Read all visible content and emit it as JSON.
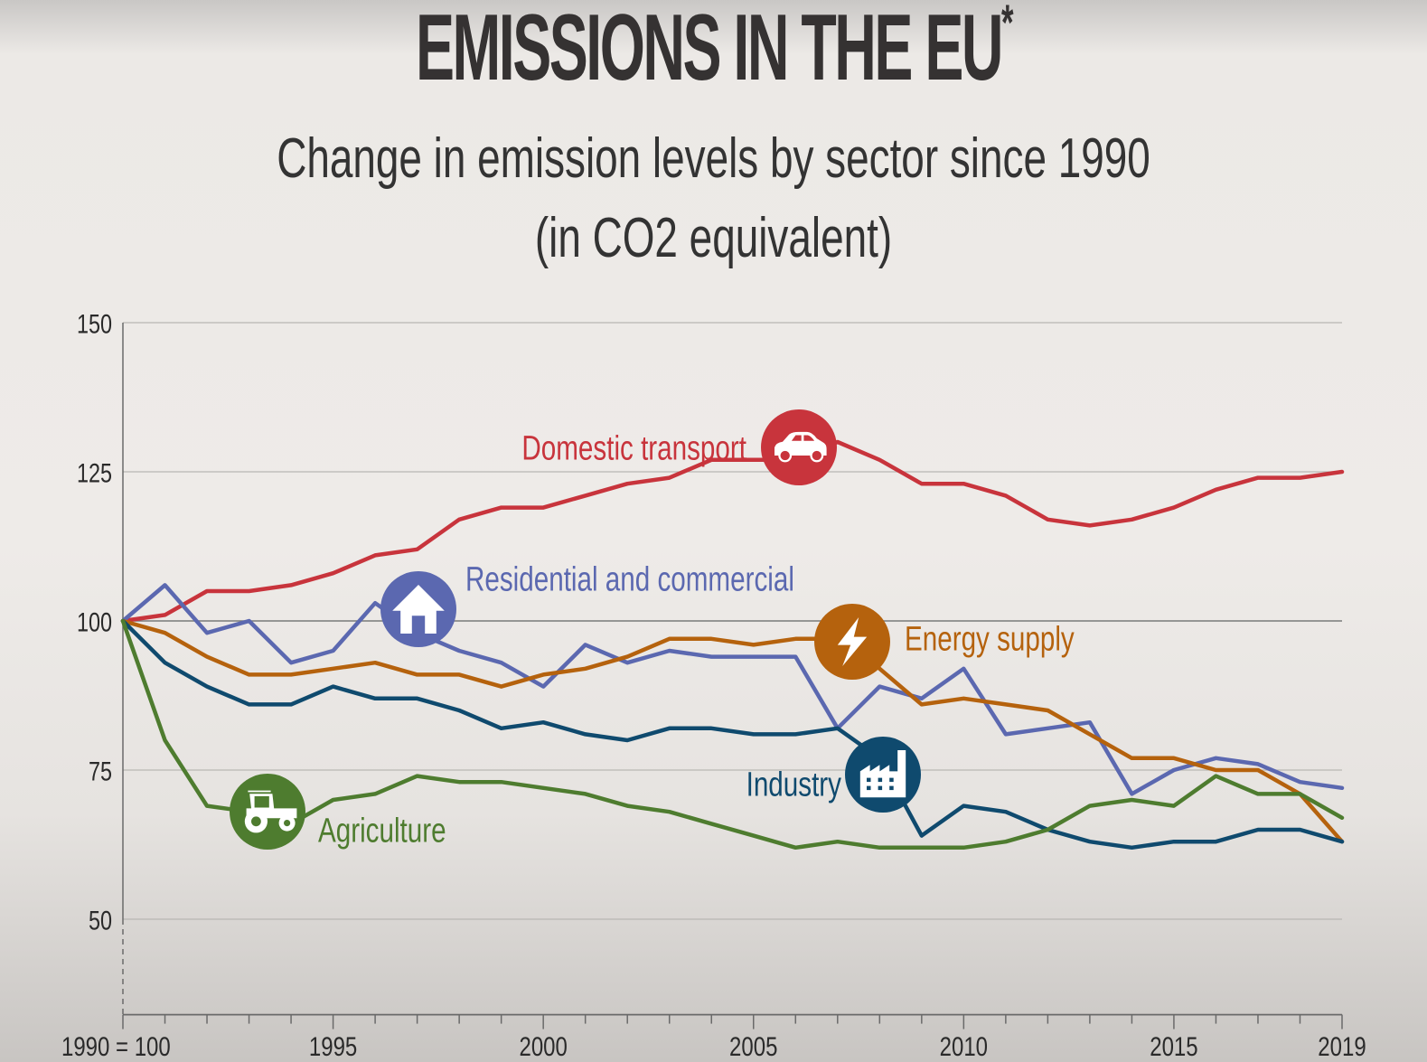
{
  "header": {
    "title": "EMISSIONS IN THE EU",
    "title_mark": "*",
    "subtitle_line1": "Change in emission levels by sector since 1990",
    "subtitle_line2": "(in CO2 equivalent)"
  },
  "chart_data": {
    "type": "line",
    "title": "EMISSIONS IN THE EU*",
    "subtitle": "Change in emission levels by sector since 1990 (in CO2 equivalent)",
    "xlabel": "",
    "ylabel": "",
    "x": [
      1990,
      1991,
      1992,
      1993,
      1994,
      1995,
      1996,
      1997,
      1998,
      1999,
      2000,
      2001,
      2002,
      2003,
      2004,
      2005,
      2006,
      2007,
      2008,
      2009,
      2010,
      2011,
      2012,
      2013,
      2014,
      2015,
      2016,
      2017,
      2018,
      2019
    ],
    "xlim": [
      1990,
      2019
    ],
    "ylim": [
      34,
      150
    ],
    "x_ticks": [
      1990,
      1995,
      2000,
      2005,
      2010,
      2015,
      2019
    ],
    "x_tick_labels": [
      "1990 = 100",
      "1995",
      "2000",
      "2005",
      "2010",
      "2015",
      "2019"
    ],
    "y_ticks": [
      50,
      75,
      100,
      125,
      150
    ],
    "y_tick_labels": [
      "50",
      "75",
      "100",
      "125",
      "150"
    ],
    "grid": true,
    "legend": "inline labels with icons",
    "series": [
      {
        "name": "Domestic transport",
        "color": "#c8343c",
        "icon": "car-icon",
        "icon_at_year": 2006,
        "label_position": "left-of-icon",
        "values": [
          100,
          101,
          105,
          105,
          106,
          108,
          111,
          112,
          117,
          119,
          119,
          121,
          123,
          124,
          127,
          127,
          127,
          130,
          127,
          123,
          123,
          121,
          117,
          116,
          117,
          119,
          122,
          124,
          124,
          125
        ]
      },
      {
        "name": "Residential and commercial",
        "color": "#5b68b0",
        "icon": "house-icon",
        "icon_at_year": 1997,
        "label_position": "right-of-icon",
        "values": [
          100,
          106,
          98,
          100,
          93,
          95,
          103,
          98,
          95,
          93,
          89,
          96,
          93,
          95,
          94,
          94,
          94,
          82,
          89,
          87,
          92,
          81,
          82,
          83,
          71,
          75,
          77,
          76,
          73,
          72
        ]
      },
      {
        "name": "Energy supply",
        "color": "#b5620d",
        "icon": "lightning-icon",
        "icon_at_year": 2007.5,
        "label_position": "right-of-icon",
        "values": [
          100,
          98,
          94,
          91,
          91,
          92,
          93,
          91,
          91,
          89,
          91,
          92,
          94,
          97,
          97,
          96,
          97,
          97,
          92,
          86,
          87,
          86,
          85,
          81,
          77,
          77,
          75,
          75,
          71,
          63
        ]
      },
      {
        "name": "Industry",
        "color": "#0f4a6e",
        "icon": "factory-icon",
        "icon_at_year": 2008.2,
        "label_position": "left-of-icon",
        "values": [
          100,
          93,
          89,
          86,
          86,
          89,
          87,
          87,
          85,
          82,
          83,
          81,
          80,
          82,
          82,
          81,
          81,
          82,
          77,
          64,
          69,
          68,
          65,
          63,
          62,
          63,
          63,
          65,
          65,
          63
        ]
      },
      {
        "name": "Agriculture",
        "color": "#4e7c2f",
        "icon": "tractor-icon",
        "icon_at_year": 1993.5,
        "label_position": "right-of-icon",
        "values": [
          100,
          80,
          69,
          68,
          66,
          70,
          71,
          74,
          73,
          73,
          72,
          71,
          69,
          68,
          66,
          64,
          62,
          63,
          62,
          62,
          62,
          63,
          65,
          69,
          70,
          69,
          74,
          71,
          71,
          67
        ]
      }
    ]
  }
}
